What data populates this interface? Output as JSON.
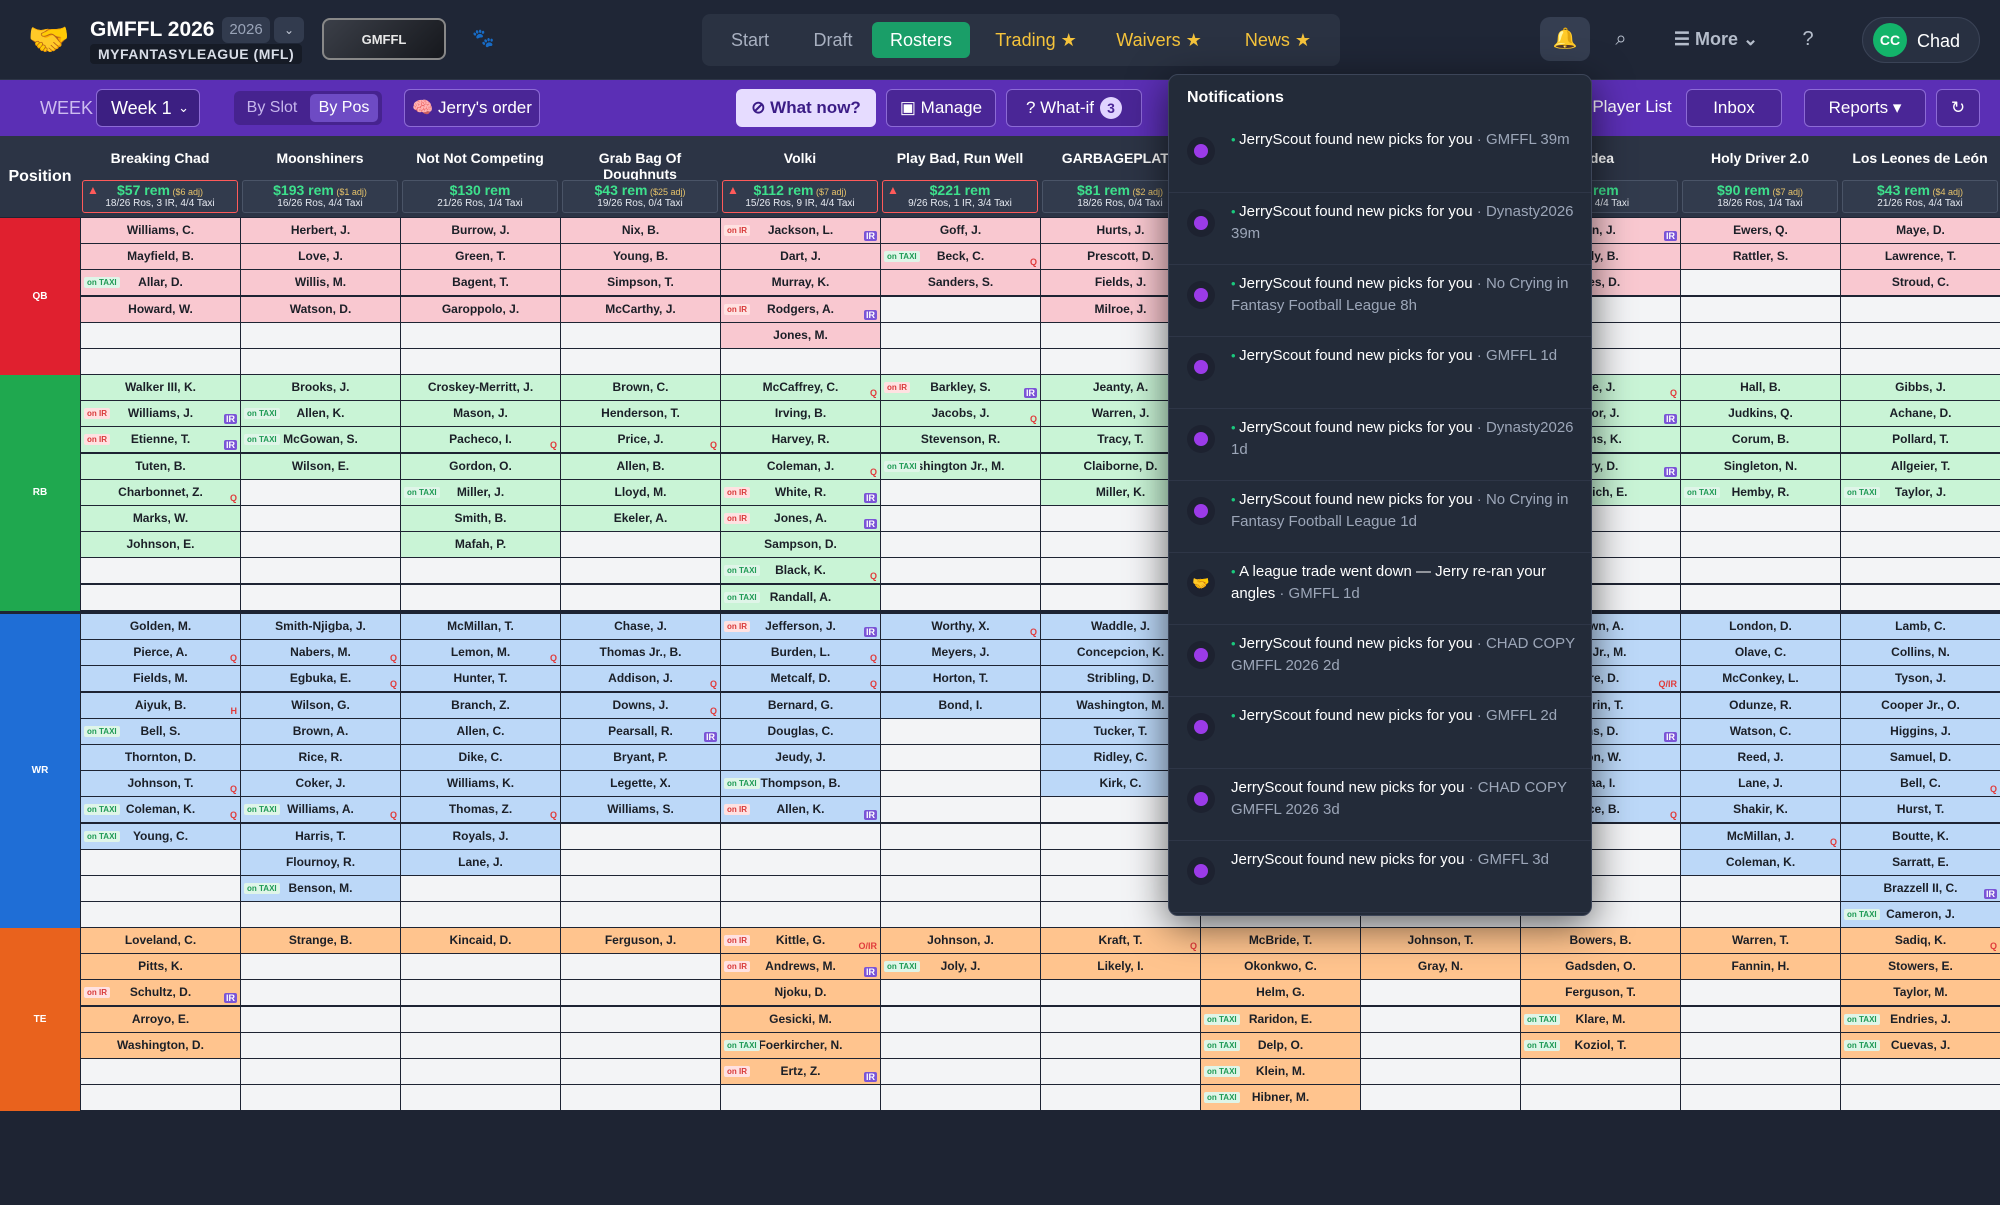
{
  "header": {
    "logo_glyph": "🤝",
    "title": "GMFFL 2026",
    "year": "2026",
    "subtitle": "MYFANTASYLEAGUE (MFL)",
    "badge_text": "GMFFL"
  },
  "nav": {
    "items": [
      "Start",
      "Draft",
      "Rosters",
      "Trading ★",
      "Waivers ★",
      "News ★"
    ],
    "active": "Rosters"
  },
  "topright": {
    "bell_icon": "🔔",
    "search_icon": "⌕",
    "more_label": "☰  More  ⌄",
    "help_icon": "?",
    "avatar": "CC",
    "user": "Chad"
  },
  "toolbar": {
    "week_label": "WEEK",
    "week_value": "Week 1",
    "by_slot": "By Slot",
    "by_pos": "By Pos",
    "jerry_order": "🧠 Jerry's order",
    "what_now": "⊘ What now?",
    "manage": "▣ Manage",
    "whatif": "? What-if",
    "whatif_count": "3",
    "player_list": "Player List",
    "inbox": "Inbox",
    "reports": "Reports ▾",
    "refresh": "↻"
  },
  "grid": {
    "position_header": "Position",
    "positions": [
      "QB",
      "RB",
      "WR",
      "TE"
    ],
    "colors": {
      "qb": "#e0202f",
      "rb": "#1fa84f",
      "wr": "#1f6ed6",
      "te": "#e9621d"
    },
    "teams": [
      {
        "name": "Breaking Chad",
        "rem": "$57 rem",
        "adj": "($6 adj)",
        "ros": "18/26 Ros, 3 IR, 4/4 Taxi",
        "warn": true
      },
      {
        "name": "Moonshiners",
        "rem": "$193 rem",
        "adj": "($1 adj)",
        "ros": "16/26 Ros, 4/4 Taxi",
        "warn": false
      },
      {
        "name": "Not Not Competing",
        "rem": "$130 rem",
        "adj": "",
        "ros": "21/26 Ros, 1/4 Taxi",
        "warn": false
      },
      {
        "name": "Grab Bag Of Doughnuts",
        "rem": "$43 rem",
        "adj": "($25 adj)",
        "ros": "19/26 Ros, 0/4 Taxi",
        "warn": false
      },
      {
        "name": "Volki",
        "rem": "$112 rem",
        "adj": "($7 adj)",
        "ros": "15/26 Ros, 9 IR, 4/4 Taxi",
        "warn": true
      },
      {
        "name": "Play Bad, Run Well",
        "rem": "$221 rem",
        "adj": "",
        "ros": "9/26 Ros, 1 IR, 3/4 Taxi",
        "warn": true
      },
      {
        "name": "GARBAGEPLATE",
        "rem": "$81 rem",
        "adj": "($2 adj)",
        "ros": "18/26 Ros, 0/4 Taxi",
        "warn": false
      },
      {
        "name": "",
        "rem": "",
        "adj": "",
        "ros": "",
        "warn": false
      },
      {
        "name": "",
        "rem": "",
        "adj": "",
        "ros": "",
        "warn": false
      },
      {
        "name": "Idea",
        "rem": "$ rem",
        "adj": "",
        "ros": "5 IR, 4/4 Taxi",
        "warn": false
      },
      {
        "name": "Holy Driver 2.0",
        "rem": "$90 rem",
        "adj": "($7 adj)",
        "ros": "18/26 Ros, 1/4 Taxi",
        "warn": false
      },
      {
        "name": "Los Leones de León",
        "rem": "$43 rem",
        "adj": "($4 adj)",
        "ros": "21/26 Ros, 4/4 Taxi",
        "warn": false
      }
    ],
    "qb": [
      [
        {
          "n": "Williams, C."
        },
        {
          "n": "Mayfield, B."
        },
        {
          "n": "Allar, D.",
          "t": "taxi"
        },
        {
          "n": "Howard, W."
        }
      ],
      [
        {
          "n": "Herbert, J."
        },
        {
          "n": "Love, J."
        },
        {
          "n": "Willis, M."
        },
        {
          "n": "Watson, D."
        }
      ],
      [
        {
          "n": "Burrow, J."
        },
        {
          "n": "Green, T."
        },
        {
          "n": "Bagent, T."
        },
        {
          "n": "Garoppolo, J."
        }
      ],
      [
        {
          "n": "Nix, B."
        },
        {
          "n": "Young, B."
        },
        {
          "n": "Simpson, T."
        },
        {
          "n": "McCarthy, J."
        }
      ],
      [
        {
          "n": "Jackson, L.",
          "t": "ir",
          "f": "IR"
        },
        {
          "n": "Dart, J."
        },
        {
          "n": "Murray, K."
        },
        {
          "n": "Rodgers, A.",
          "t": "ir",
          "f": "IR"
        },
        {
          "n": "Jones, M."
        }
      ],
      [
        {
          "n": "Goff, J."
        },
        {
          "n": "Beck, C.",
          "t": "taxi",
          "f": "Q"
        },
        {
          "n": "Sanders, S."
        }
      ],
      [
        {
          "n": "Hurts, J."
        },
        {
          "n": "Prescott, D."
        },
        {
          "n": "Fields, J."
        },
        {
          "n": "Milroe, J."
        }
      ],
      [],
      [],
      [
        {
          "n": "en, J.",
          "f": "IR"
        },
        {
          "n": "rdy, B."
        },
        {
          "n": "nes, D."
        }
      ],
      [
        {
          "n": "Ewers, Q."
        },
        {
          "n": "Rattler, S."
        }
      ],
      [
        {
          "n": "Maye, D."
        },
        {
          "n": "Lawrence, T."
        },
        {
          "n": "Stroud, C."
        }
      ]
    ],
    "rb": [
      [
        {
          "n": "Walker III, K."
        },
        {
          "n": "Williams, J.",
          "t": "ir",
          "f": "IR"
        },
        {
          "n": "Etienne, T.",
          "t": "ir",
          "f": "IR"
        },
        {
          "n": "Tuten, B."
        },
        {
          "n": "Charbonnet, Z.",
          "f": "Q"
        },
        {
          "n": "Marks, W."
        },
        {
          "n": "Johnson, E."
        }
      ],
      [
        {
          "n": "Brooks, J."
        },
        {
          "n": "Allen, K.",
          "t": "taxi"
        },
        {
          "n": "McGowan, S.",
          "t": "taxi"
        },
        {
          "n": "Wilson, E."
        }
      ],
      [
        {
          "n": "Croskey-Merritt, J."
        },
        {
          "n": "Mason, J."
        },
        {
          "n": "Pacheco, I.",
          "f": "Q"
        },
        {
          "n": "Gordon, O."
        },
        {
          "n": "Miller, J.",
          "t": "taxi"
        },
        {
          "n": "Smith, B."
        },
        {
          "n": "Mafah, P."
        }
      ],
      [
        {
          "n": "Brown, C."
        },
        {
          "n": "Henderson, T."
        },
        {
          "n": "Price, J.",
          "f": "Q"
        },
        {
          "n": "Allen, B."
        },
        {
          "n": "Lloyd, M."
        },
        {
          "n": "Ekeler, A."
        }
      ],
      [
        {
          "n": "McCaffrey, C.",
          "f": "Q"
        },
        {
          "n": "Irving, B."
        },
        {
          "n": "Harvey, R."
        },
        {
          "n": "Coleman, J.",
          "f": "Q"
        },
        {
          "n": "White, R.",
          "t": "ir",
          "f": "IR"
        },
        {
          "n": "Jones, A.",
          "t": "ir",
          "f": "IR"
        },
        {
          "n": "Sampson, D."
        },
        {
          "n": "Black, K.",
          "t": "taxi",
          "f": "Q"
        },
        {
          "n": "Randall, A.",
          "t": "taxi"
        }
      ],
      [
        {
          "n": "Barkley, S.",
          "t": "ir",
          "f": "IR"
        },
        {
          "n": "Jacobs, J.",
          "f": "Q"
        },
        {
          "n": "Stevenson, R."
        },
        {
          "n": "shington Jr., M.",
          "t": "taxi"
        }
      ],
      [
        {
          "n": "Jeanty, A."
        },
        {
          "n": "Warren, J."
        },
        {
          "n": "Tracy, T."
        },
        {
          "n": "Claiborne, D."
        },
        {
          "n": "Miller, K."
        }
      ],
      [],
      [],
      [
        {
          "n": "ve, J.",
          "f": "Q"
        },
        {
          "n": "ylor, J.",
          "f": "IR"
        },
        {
          "n": "ams, K."
        },
        {
          "n": "ary, D.",
          "f": "IR"
        },
        {
          "n": "hreich, E."
        }
      ],
      [
        {
          "n": "Hall, B."
        },
        {
          "n": "Judkins, Q."
        },
        {
          "n": "Corum, B."
        },
        {
          "n": "Singleton, N."
        },
        {
          "n": "Hemby, R.",
          "t": "taxi"
        }
      ],
      [
        {
          "n": "Gibbs, J."
        },
        {
          "n": "Achane, D."
        },
        {
          "n": "Pollard, T."
        },
        {
          "n": "Allgeier, T."
        },
        {
          "n": "Taylor, J.",
          "t": "taxi"
        }
      ]
    ],
    "wr": [
      [
        {
          "n": "Golden, M."
        },
        {
          "n": "Pierce, A.",
          "f": "Q"
        },
        {
          "n": "Fields, M."
        },
        {
          "n": "Aiyuk, B.",
          "f": "H"
        },
        {
          "n": "Bell, S.",
          "t": "taxi"
        },
        {
          "n": "Thornton, D."
        },
        {
          "n": "Johnson, T.",
          "f": "Q"
        },
        {
          "n": "Coleman, K.",
          "t": "taxi",
          "f": "Q"
        },
        {
          "n": "Young, C.",
          "t": "taxi"
        }
      ],
      [
        {
          "n": "Smith-Njigba, J."
        },
        {
          "n": "Nabers, M.",
          "f": "Q"
        },
        {
          "n": "Egbuka, E.",
          "f": "Q"
        },
        {
          "n": "Wilson, G."
        },
        {
          "n": "Brown, A."
        },
        {
          "n": "Rice, R."
        },
        {
          "n": "Coker, J."
        },
        {
          "n": "Williams, A.",
          "t": "taxi",
          "f": "Q"
        },
        {
          "n": "Harris, T."
        },
        {
          "n": "Flournoy, R."
        },
        {
          "n": "Benson, M.",
          "t": "taxi"
        }
      ],
      [
        {
          "n": "McMillan, T."
        },
        {
          "n": "Lemon, M.",
          "f": "Q"
        },
        {
          "n": "Hunter, T."
        },
        {
          "n": "Branch, Z."
        },
        {
          "n": "Allen, C."
        },
        {
          "n": "Dike, C."
        },
        {
          "n": "Williams, K."
        },
        {
          "n": "Thomas, Z.",
          "f": "Q"
        },
        {
          "n": "Royals, J."
        },
        {
          "n": "Lane, J."
        }
      ],
      [
        {
          "n": "Chase, J."
        },
        {
          "n": "Thomas Jr., B."
        },
        {
          "n": "Addison, J.",
          "f": "Q"
        },
        {
          "n": "Downs, J.",
          "f": "Q"
        },
        {
          "n": "Pearsall, R.",
          "f": "IR"
        },
        {
          "n": "Bryant, P."
        },
        {
          "n": "Legette, X."
        },
        {
          "n": "Williams, S."
        }
      ],
      [
        {
          "n": "Jefferson, J.",
          "t": "ir",
          "f": "IR"
        },
        {
          "n": "Burden, L.",
          "f": "Q"
        },
        {
          "n": "Metcalf, D.",
          "f": "Q"
        },
        {
          "n": "Bernard, G."
        },
        {
          "n": "Douglas, C."
        },
        {
          "n": "Jeudy, J."
        },
        {
          "n": "Thompson, B.",
          "t": "taxi"
        },
        {
          "n": "Allen, K.",
          "t": "ir",
          "f": "IR"
        }
      ],
      [
        {
          "n": "Worthy, X.",
          "f": "Q"
        },
        {
          "n": "Meyers, J."
        },
        {
          "n": "Horton, T."
        },
        {
          "n": "Bond, I."
        }
      ],
      [
        {
          "n": "Waddle, J."
        },
        {
          "n": "Concepcion, K."
        },
        {
          "n": "Stribling, D."
        },
        {
          "n": "Washington, M."
        },
        {
          "n": "Tucker, T."
        },
        {
          "n": "Ridley, C."
        },
        {
          "n": "Kirk, C."
        }
      ],
      [],
      [],
      [
        {
          "n": "rown, A."
        },
        {
          "n": "on Jr., M."
        },
        {
          "n": "pre, D.",
          "f": "Q/IR"
        },
        {
          "n": "burin, T."
        },
        {
          "n": "ms, D.",
          "f": "IR"
        },
        {
          "n": "son, W."
        },
        {
          "n": "laa, I."
        },
        {
          "n": "ace, B.",
          "f": "Q"
        }
      ],
      [
        {
          "n": "London, D."
        },
        {
          "n": "Olave, C."
        },
        {
          "n": "McConkey, L."
        },
        {
          "n": "Odunze, R."
        },
        {
          "n": "Watson, C."
        },
        {
          "n": "Reed, J."
        },
        {
          "n": "Lane, J."
        },
        {
          "n": "Shakir, K."
        },
        {
          "n": "McMillan, J.",
          "f": "Q"
        },
        {
          "n": "Coleman, K."
        }
      ],
      [
        {
          "n": "Lamb, C."
        },
        {
          "n": "Collins, N."
        },
        {
          "n": "Tyson, J."
        },
        {
          "n": "Cooper Jr., O."
        },
        {
          "n": "Higgins, J."
        },
        {
          "n": "Samuel, D."
        },
        {
          "n": "Bell, C.",
          "f": "Q"
        },
        {
          "n": "Hurst, T."
        },
        {
          "n": "Boutte, K."
        },
        {
          "n": "Sarratt, E."
        },
        {
          "n": "Brazzell II, C.",
          "f": "IR"
        },
        {
          "n": "Cameron, J.",
          "t": "taxi"
        }
      ]
    ],
    "te": [
      [
        {
          "n": "Loveland, C."
        },
        {
          "n": "Pitts, K."
        },
        {
          "n": "Schultz, D.",
          "t": "ir",
          "f": "IR"
        },
        {
          "n": "Arroyo, E."
        },
        {
          "n": "Washington, D."
        }
      ],
      [
        {
          "n": "Strange, B."
        }
      ],
      [
        {
          "n": "Kincaid, D."
        }
      ],
      [
        {
          "n": "Ferguson, J."
        }
      ],
      [
        {
          "n": "Kittle, G.",
          "t": "ir",
          "f": "O/IR"
        },
        {
          "n": "Andrews, M.",
          "t": "ir",
          "f": "IR"
        },
        {
          "n": "Njoku, D."
        },
        {
          "n": "Gesicki, M."
        },
        {
          "n": "Foerkircher, N.",
          "t": "taxi"
        },
        {
          "n": "Ertz, Z.",
          "t": "ir",
          "f": "IR"
        }
      ],
      [
        {
          "n": "Johnson, J."
        },
        {
          "n": "Joly, J.",
          "t": "taxi"
        }
      ],
      [
        {
          "n": "Kraft, T.",
          "f": "Q"
        },
        {
          "n": "Likely, I."
        }
      ],
      [
        {
          "n": "McBride, T."
        },
        {
          "n": "Okonkwo, C."
        },
        {
          "n": "Helm, G."
        },
        {
          "n": "Raridon, E.",
          "t": "taxi"
        },
        {
          "n": "Delp, O.",
          "t": "taxi"
        },
        {
          "n": "Klein, M.",
          "t": "taxi"
        },
        {
          "n": "Hibner, M.",
          "t": "taxi"
        }
      ],
      [
        {
          "n": "Johnson, T."
        },
        {
          "n": "Gray, N."
        }
      ],
      [
        {
          "n": "Bowers, B."
        },
        {
          "n": "Gadsden, O."
        },
        {
          "n": "Ferguson, T."
        },
        {
          "n": "Klare, M.",
          "t": "taxi"
        },
        {
          "n": "Koziol, T.",
          "t": "taxi"
        }
      ],
      [
        {
          "n": "Warren, T."
        },
        {
          "n": "Fannin, H."
        }
      ],
      [
        {
          "n": "Sadiq, K.",
          "f": "Q"
        },
        {
          "n": "Stowers, E."
        },
        {
          "n": "Taylor, M."
        },
        {
          "n": "Endries, J.",
          "t": "taxi"
        },
        {
          "n": "Cuevas, J.",
          "t": "taxi"
        }
      ]
    ]
  },
  "notifications": {
    "title": "Notifications",
    "items": [
      {
        "unread": true,
        "text": "JerryScout found new picks for you",
        "meta": "· GMFFL 39m",
        "icon": "dot"
      },
      {
        "unread": true,
        "text": "JerryScout found new picks for you",
        "meta": "· Dynasty2026 39m",
        "icon": "dot"
      },
      {
        "unread": true,
        "text": "JerryScout found new picks for you",
        "meta": "· No Crying in Fantasy Football League 8h",
        "icon": "dot"
      },
      {
        "unread": true,
        "text": "JerryScout found new picks for you",
        "meta": "· GMFFL 1d",
        "icon": "dot"
      },
      {
        "unread": true,
        "text": "JerryScout found new picks for you",
        "meta": "· Dynasty2026 1d",
        "icon": "dot"
      },
      {
        "unread": true,
        "text": "JerryScout found new picks for you",
        "meta": "· No Crying in Fantasy Football League 1d",
        "icon": "dot"
      },
      {
        "unread": true,
        "text": "A league trade went down — Jerry re-ran your angles",
        "meta": "· GMFFL 1d",
        "icon": "hand"
      },
      {
        "unread": true,
        "text": "JerryScout found new picks for you",
        "meta": "· CHAD COPY GMFFL 2026 2d",
        "icon": "dot"
      },
      {
        "unread": true,
        "text": "JerryScout found new picks for you",
        "meta": "· GMFFL 2d",
        "icon": "dot"
      },
      {
        "unread": false,
        "text": "JerryScout found new picks for you",
        "meta": "· CHAD COPY GMFFL 2026 3d",
        "icon": "dot"
      },
      {
        "unread": false,
        "text": "JerryScout found new picks for you",
        "meta": "· GMFFL 3d",
        "icon": "dot"
      },
      {
        "unread": false,
        "text": "JerryScout found new picks for you",
        "meta": "",
        "icon": "dot"
      }
    ]
  }
}
